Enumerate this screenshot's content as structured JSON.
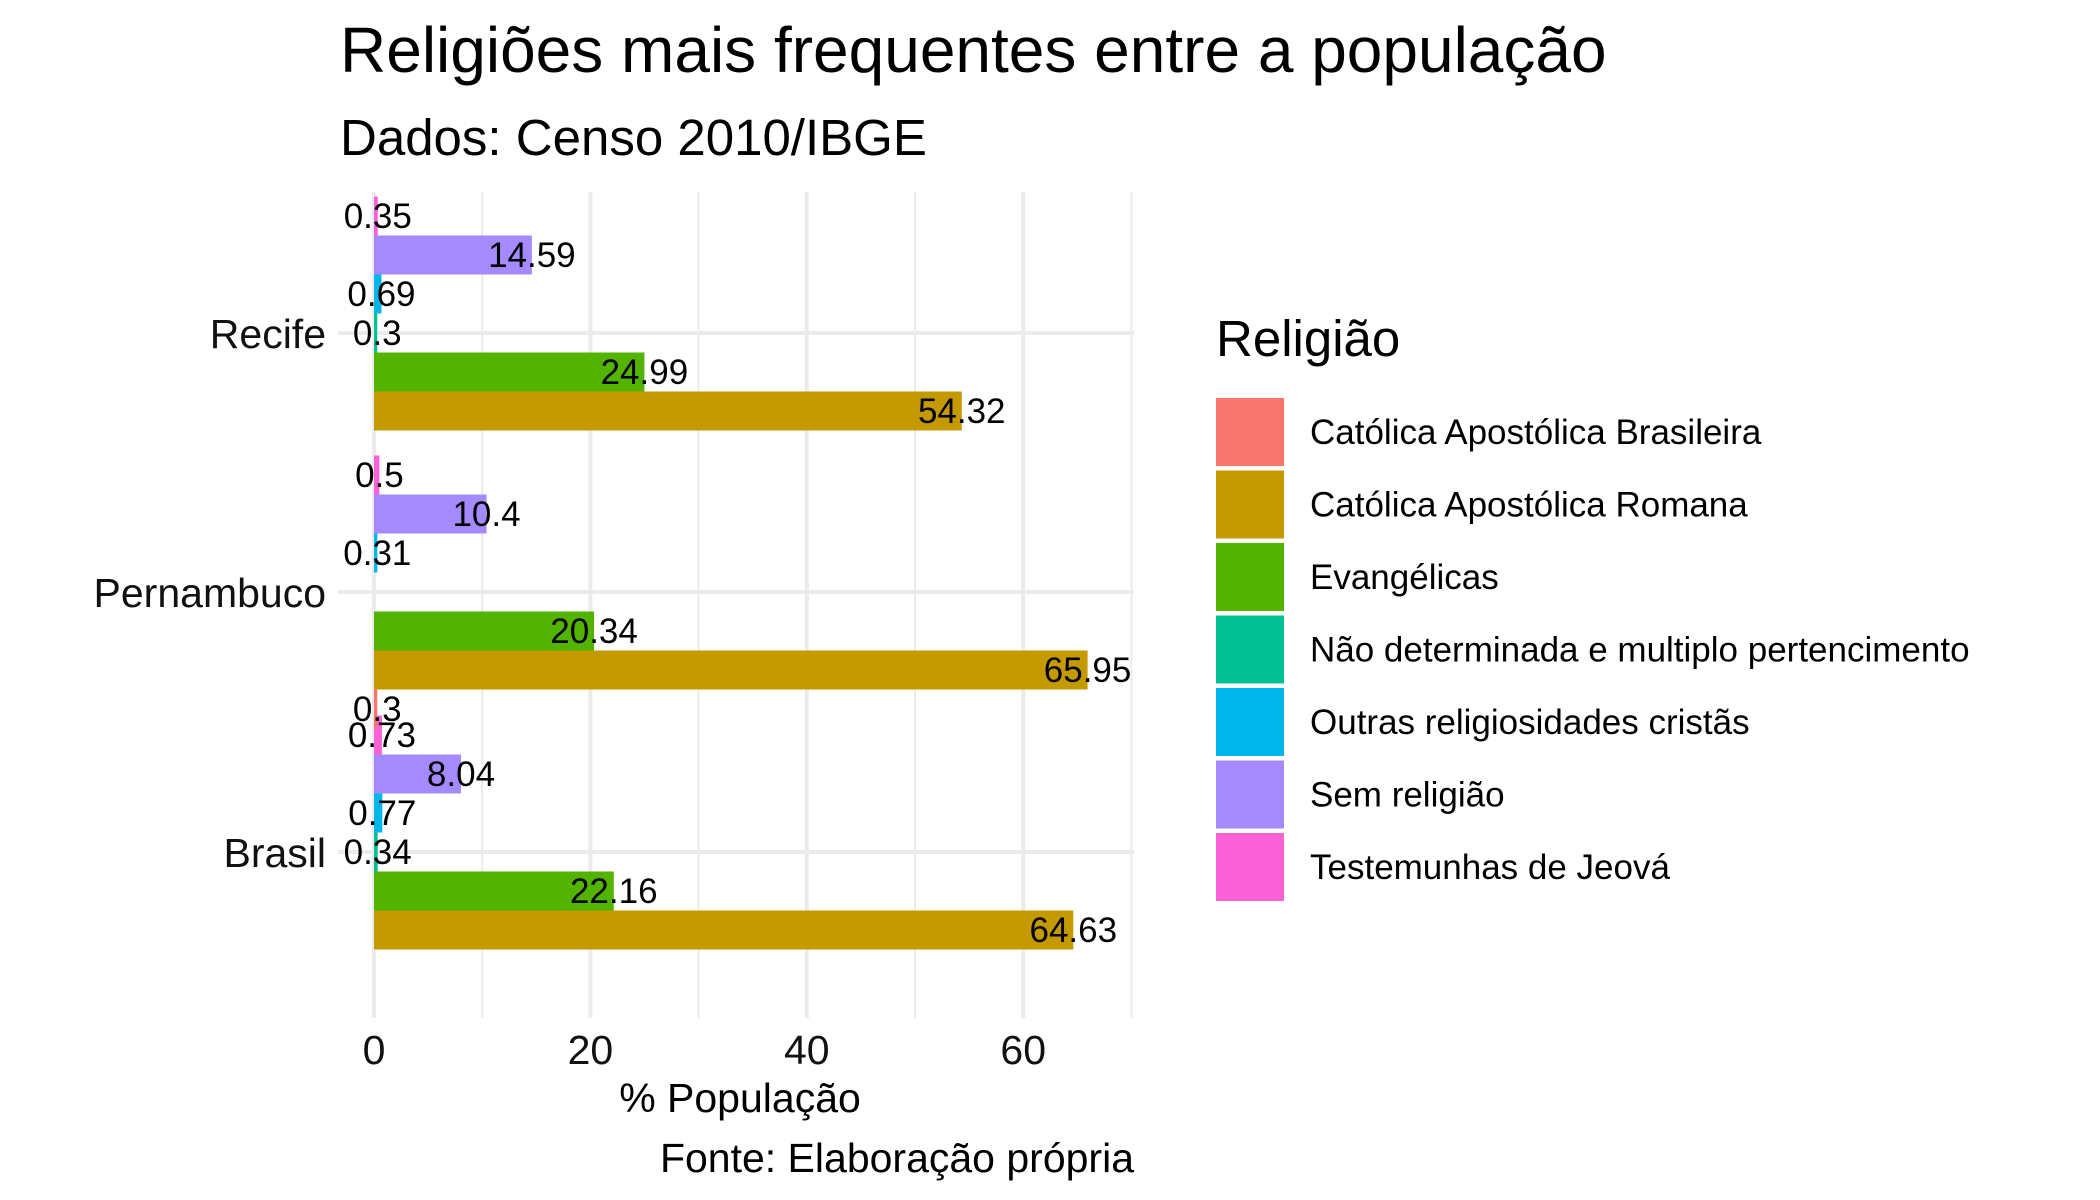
{
  "chart_data": {
    "type": "bar",
    "orientation": "horizontal",
    "title": "Religiões mais frequentes entre a população",
    "subtitle": "Dados: Censo 2010/IBGE",
    "xlabel": "% População",
    "ylabel": "",
    "caption": "Fonte: Elaboração própria",
    "xlim": [
      0,
      70
    ],
    "xticks": [
      0,
      20,
      40,
      60
    ],
    "grid": true,
    "legend": {
      "title": "Religião",
      "position": "right"
    },
    "categories": [
      "Brasil",
      "Pernambuco",
      "Recife"
    ],
    "series": [
      {
        "name": "Católica Apostólica Brasileira",
        "color": "#F8766D",
        "values": [
          null,
          0.3,
          null
        ]
      },
      {
        "name": "Católica Apostólica Romana",
        "color": "#C49A00",
        "values": [
          64.63,
          65.95,
          54.32
        ]
      },
      {
        "name": "Evangélicas",
        "color": "#53B400",
        "values": [
          22.16,
          20.34,
          24.99
        ]
      },
      {
        "name": "Não determinada e multiplo pertencimento",
        "color": "#00C094",
        "values": [
          0.34,
          null,
          0.3
        ]
      },
      {
        "name": "Outras religiosidades cristãs",
        "color": "#00B6EB",
        "values": [
          0.77,
          0.31,
          0.69
        ]
      },
      {
        "name": "Sem religião",
        "color": "#A58AFF",
        "values": [
          8.04,
          10.4,
          14.59
        ]
      },
      {
        "name": "Testemunhas de Jeová",
        "color": "#FB61D7",
        "values": [
          0.73,
          0.5,
          0.35
        ]
      }
    ]
  }
}
